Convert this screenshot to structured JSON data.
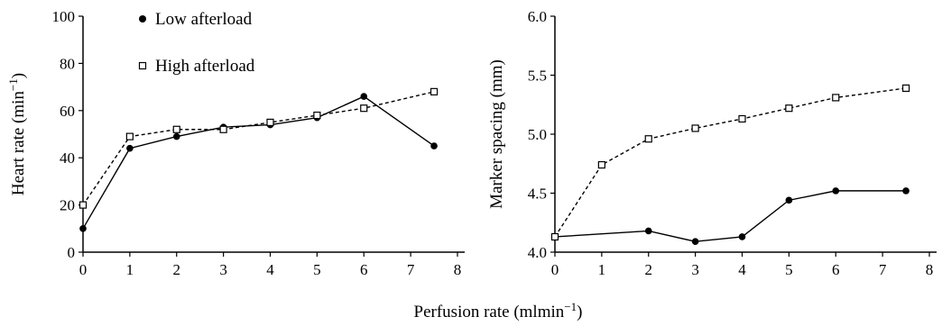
{
  "shared_xlabel": "Perfusion rate (mlmin",
  "shared_xlabel_sup": "−1",
  "shared_xlabel_close": ")",
  "chart_data": [
    {
      "type": "line",
      "ylabel": "Heart rate (min",
      "ylabel_sup": "−1",
      "ylabel_close": ")",
      "xlim": [
        0,
        8
      ],
      "ylim": [
        0,
        100
      ],
      "xticks": [
        "0",
        "1",
        "2",
        "3",
        "4",
        "5",
        "6",
        "7",
        "8"
      ],
      "yticks": [
        "0",
        "20",
        "40",
        "60",
        "80",
        "100"
      ],
      "grid": false,
      "legend": [
        "Low afterload",
        "High afterload"
      ],
      "series": [
        {
          "name": "Low afterload",
          "marker": "filled-circle",
          "line": "solid",
          "points": [
            [
              0,
              10
            ],
            [
              1,
              44
            ],
            [
              2,
              49
            ],
            [
              3,
              53
            ],
            [
              4,
              54
            ],
            [
              5,
              57
            ],
            [
              6,
              66
            ],
            [
              7.5,
              45
            ]
          ]
        },
        {
          "name": "High afterload",
          "marker": "open-square",
          "line": "dashed",
          "points": [
            [
              0,
              20
            ],
            [
              1,
              49
            ],
            [
              2,
              52
            ],
            [
              3,
              52
            ],
            [
              4,
              55
            ],
            [
              5,
              58
            ],
            [
              6,
              61
            ],
            [
              7.5,
              68
            ]
          ]
        }
      ]
    },
    {
      "type": "line",
      "ylabel": "Marker spacing (mm)",
      "xlim": [
        0,
        8
      ],
      "ylim": [
        4.0,
        6.0
      ],
      "xticks": [
        "0",
        "1",
        "2",
        "3",
        "4",
        "5",
        "6",
        "7",
        "8"
      ],
      "yticks": [
        "4.0",
        "4.5",
        "5.0",
        "5.5",
        "6.0"
      ],
      "grid": false,
      "series": [
        {
          "marker": "filled-circle",
          "line": "solid",
          "points": [
            [
              0,
              4.13
            ],
            [
              2,
              4.18
            ],
            [
              3,
              4.09
            ],
            [
              4,
              4.13
            ],
            [
              5,
              4.44
            ],
            [
              6,
              4.52
            ],
            [
              7.5,
              4.52
            ]
          ]
        },
        {
          "marker": "open-square",
          "line": "dashed",
          "points": [
            [
              0,
              4.13
            ],
            [
              1,
              4.74
            ],
            [
              2,
              4.96
            ],
            [
              3,
              5.05
            ],
            [
              4,
              5.13
            ],
            [
              5,
              5.22
            ],
            [
              6,
              5.31
            ],
            [
              7.5,
              5.39
            ]
          ]
        }
      ]
    }
  ]
}
